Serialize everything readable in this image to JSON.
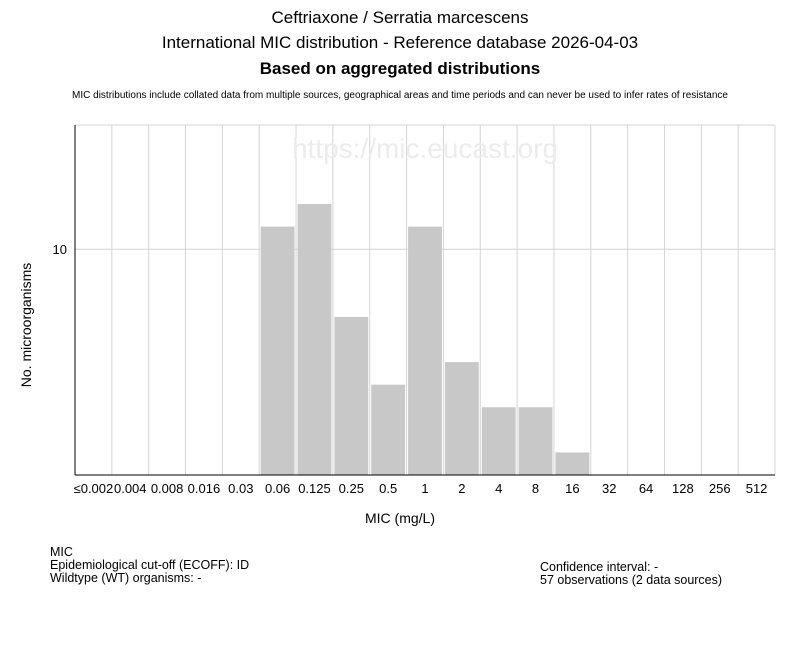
{
  "header": {
    "title": "Ceftriaxone / Serratia marcescens",
    "subtitle": "International MIC distribution - Reference database 2026-04-03",
    "subtitle2": "Based on aggregated distributions",
    "note": "MIC distributions include collated data from multiple sources, geographical areas and time periods and can never be used to infer rates of resistance"
  },
  "watermark": "https://mic.eucast.org",
  "chart_data": {
    "type": "bar",
    "title": "Ceftriaxone / Serratia marcescens",
    "xlabel": "MIC (mg/L)",
    "ylabel": "No. microorganisms",
    "categories": [
      "≤0.002",
      "0.004",
      "0.008",
      "0.016",
      "0.03",
      "0.06",
      "0.125",
      "0.25",
      "0.5",
      "1",
      "2",
      "4",
      "8",
      "16",
      "32",
      "64",
      "128",
      "256",
      "512"
    ],
    "values": [
      0,
      0,
      0,
      0,
      0,
      11,
      12,
      7,
      4,
      11,
      5,
      3,
      3,
      1,
      0,
      0,
      0,
      0,
      0
    ],
    "yticks": [
      10
    ],
    "ylim": [
      0,
      15.5
    ],
    "grid": true,
    "bar_color": "#c8c8c8",
    "grid_color": "#d4d4d4"
  },
  "info": {
    "mic_label": "MIC",
    "ecoff": "Epidemiological cut-off (ECOFF): ID",
    "wildtype": "Wildtype (WT) organisms:  -",
    "confidence": "Confidence interval: -",
    "observations": "57 observations (2 data sources)"
  }
}
